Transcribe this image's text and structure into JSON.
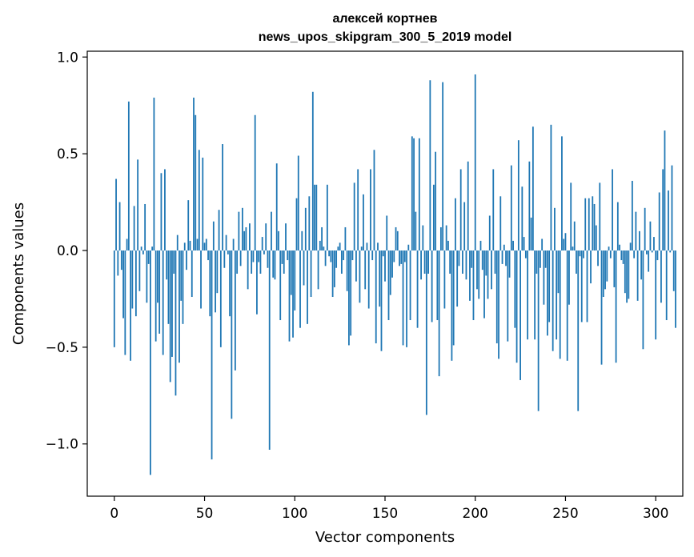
{
  "chart_data": {
    "type": "bar",
    "title": "алексей кортнев",
    "subtitle": "news_upos_skipgram_300_5_2019 model",
    "xlabel": "Vector components",
    "ylabel": "Components values",
    "xlim": [
      -15,
      315
    ],
    "ylim": [
      -1.27,
      1.03
    ],
    "xticks": [
      0,
      50,
      100,
      150,
      200,
      250,
      300
    ],
    "xtick_labels": [
      "0",
      "50",
      "100",
      "150",
      "200",
      "250",
      "300"
    ],
    "yticks": [
      1.0,
      0.5,
      0.0,
      -0.5,
      -1.0
    ],
    "ytick_labels": [
      "1.0",
      "0.5",
      "0.0",
      "−0.5",
      "−1.0"
    ],
    "grid": false,
    "bar_color": "#1f77b4",
    "x_start": 0,
    "values": [
      -0.5,
      0.37,
      -0.13,
      0.25,
      -0.1,
      -0.35,
      -0.54,
      0.06,
      0.77,
      -0.57,
      -0.3,
      0.23,
      -0.34,
      0.47,
      -0.21,
      0.02,
      -0.02,
      0.24,
      -0.27,
      -0.07,
      -1.16,
      0.02,
      0.79,
      -0.47,
      -0.27,
      -0.43,
      0.4,
      -0.54,
      0.42,
      -0.15,
      -0.38,
      -0.68,
      -0.55,
      -0.12,
      -0.75,
      0.08,
      -0.58,
      -0.26,
      -0.38,
      0.04,
      -0.1,
      0.26,
      0.05,
      -0.24,
      0.79,
      0.7,
      0.06,
      0.52,
      -0.3,
      0.48,
      0.04,
      0.06,
      -0.05,
      -0.34,
      -1.08,
      0.15,
      -0.32,
      -0.22,
      0.21,
      -0.5,
      0.55,
      -0.09,
      0.08,
      -0.02,
      -0.34,
      -0.87,
      0.06,
      -0.62,
      -0.12,
      0.2,
      -0.08,
      0.22,
      0.1,
      0.12,
      -0.2,
      0.14,
      -0.12,
      -0.06,
      0.7,
      -0.33,
      -0.06,
      -0.12,
      0.07,
      -0.02,
      0.14,
      -0.09,
      -1.03,
      0.2,
      -0.14,
      -0.15,
      0.45,
      0.1,
      -0.36,
      -0.07,
      -0.12,
      0.14,
      -0.05,
      -0.47,
      -0.23,
      -0.45,
      -0.31,
      0.27,
      0.49,
      -0.4,
      0.1,
      -0.18,
      0.22,
      -0.38,
      0.28,
      -0.24,
      0.82,
      0.34,
      0.34,
      -0.2,
      0.05,
      0.12,
      0.02,
      -0.08,
      0.34,
      -0.03,
      -0.06,
      -0.24,
      -0.19,
      -0.09,
      0.02,
      0.04,
      -0.12,
      -0.05,
      0.12,
      -0.21,
      -0.49,
      -0.44,
      -0.05,
      0.35,
      -0.16,
      0.42,
      -0.27,
      0.02,
      0.29,
      -0.2,
      0.04,
      -0.3,
      0.42,
      -0.05,
      0.52,
      -0.48,
      0.04,
      -0.29,
      -0.52,
      -0.03,
      -0.16,
      0.18,
      -0.36,
      -0.23,
      -0.14,
      -0.06,
      0.12,
      0.1,
      -0.08,
      -0.07,
      -0.49,
      -0.06,
      -0.5,
      0.03,
      -0.36,
      0.59,
      0.58,
      0.2,
      -0.4,
      0.58,
      -0.15,
      0.13,
      -0.12,
      -0.85,
      -0.12,
      0.88,
      -0.37,
      0.34,
      0.51,
      -0.36,
      -0.65,
      0.12,
      0.87,
      -0.3,
      0.13,
      0.05,
      -0.12,
      -0.57,
      -0.49,
      0.27,
      -0.29,
      -0.08,
      0.42,
      -0.12,
      0.25,
      -0.15,
      0.46,
      -0.26,
      -0.09,
      -0.36,
      0.91,
      -0.2,
      -0.25,
      0.05,
      -0.1,
      -0.35,
      -0.13,
      -0.25,
      0.18,
      -0.2,
      0.42,
      -0.12,
      -0.48,
      -0.56,
      0.28,
      -0.07,
      0.03,
      -0.08,
      -0.47,
      -0.14,
      0.44,
      0.05,
      -0.4,
      -0.58,
      0.57,
      -0.67,
      0.33,
      0.07,
      -0.04,
      -0.46,
      0.46,
      0.17,
      0.64,
      -0.46,
      -0.12,
      -0.83,
      -0.09,
      0.06,
      -0.28,
      -0.09,
      -0.44,
      -0.37,
      0.65,
      -0.52,
      0.22,
      -0.46,
      -0.22,
      -0.56,
      0.59,
      0.06,
      0.09,
      -0.57,
      -0.28,
      0.35,
      0.02,
      0.15,
      -0.12,
      -0.83,
      -0.03,
      -0.37,
      -0.04,
      0.27,
      -0.37,
      0.27,
      -0.17,
      0.28,
      0.24,
      0.13,
      -0.08,
      0.35,
      -0.59,
      -0.24,
      -0.2,
      -0.16,
      0.02,
      -0.04,
      0.42,
      -0.19,
      -0.58,
      0.25,
      0.03,
      -0.05,
      -0.07,
      -0.22,
      -0.27,
      -0.25,
      0.04,
      0.36,
      -0.04,
      0.2,
      -0.26,
      0.1,
      -0.15,
      -0.51,
      0.22,
      -0.02,
      -0.11,
      0.15,
      -0.01,
      0.07,
      -0.46,
      -0.05,
      0.3,
      -0.27,
      0.42,
      0.62,
      -0.36,
      0.31,
      -0.01,
      0.44,
      -0.21,
      -0.4
    ]
  }
}
